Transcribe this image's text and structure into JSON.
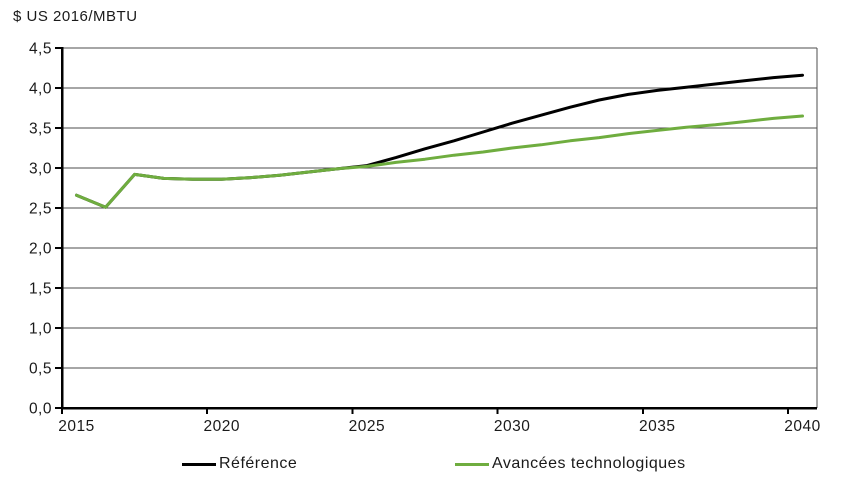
{
  "unit_label": "$ US 2016/MBTU",
  "colors": {
    "reference_line": "#000000",
    "avancees_line": "#6FAD3F",
    "gridline": "#4d4d4d",
    "axis": "#000000",
    "text": "#1a1a1a",
    "background": "#ffffff"
  },
  "legend": {
    "position": "bottom",
    "items": [
      {
        "label": "Référence",
        "color": "#000000"
      },
      {
        "label": "Avancées technologiques",
        "color": "#6FAD3F"
      }
    ]
  },
  "chart_data": {
    "type": "line",
    "title": "",
    "ylabel": "$ US 2016/MBTU",
    "xlabel": "",
    "ylim": [
      0,
      4.5
    ],
    "y_step": 0.5,
    "grid": "horizontal",
    "decimal_separator": ",",
    "legend_position": "bottom",
    "x": [
      2015,
      2016,
      2017,
      2018,
      2019,
      2020,
      2021,
      2022,
      2023,
      2024,
      2025,
      2026,
      2027,
      2028,
      2029,
      2030,
      2031,
      2032,
      2033,
      2034,
      2035,
      2036,
      2037,
      2038,
      2039,
      2040
    ],
    "x_tick_labels": [
      "2015",
      "2020",
      "2025",
      "2030",
      "2035",
      "2040"
    ],
    "x_tick_years": [
      2015,
      2020,
      2025,
      2030,
      2035,
      2040
    ],
    "y_tick_labels": [
      "0,0",
      "0,5",
      "1,0",
      "1,5",
      "2,0",
      "2,5",
      "3,0",
      "3,5",
      "4,0",
      "4,5"
    ],
    "series": [
      {
        "name": "Référence",
        "color": "#000000",
        "values": [
          2.66,
          2.51,
          2.92,
          2.87,
          2.86,
          2.86,
          2.88,
          2.91,
          2.95,
          2.99,
          3.03,
          3.13,
          3.24,
          3.34,
          3.45,
          3.56,
          3.66,
          3.76,
          3.85,
          3.92,
          3.97,
          4.01,
          4.05,
          4.09,
          4.13,
          4.16
        ]
      },
      {
        "name": "Avancées technologiques",
        "color": "#6FAD3F",
        "values": [
          2.66,
          2.51,
          2.92,
          2.87,
          2.86,
          2.86,
          2.88,
          2.91,
          2.95,
          2.99,
          3.02,
          3.07,
          3.11,
          3.16,
          3.2,
          3.25,
          3.29,
          3.34,
          3.38,
          3.43,
          3.47,
          3.51,
          3.54,
          3.58,
          3.62,
          3.65
        ]
      }
    ]
  }
}
